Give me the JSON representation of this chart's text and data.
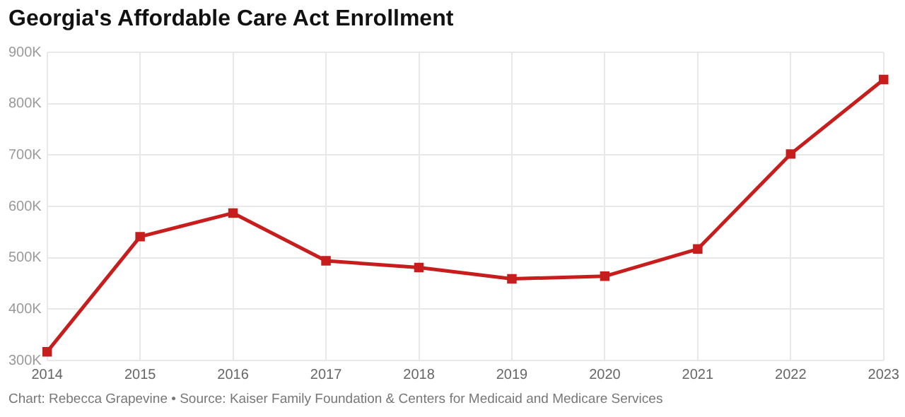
{
  "chart_data": {
    "type": "line",
    "title": "Georgia's Affordable Care Act Enrollment",
    "categories": [
      "2014",
      "2015",
      "2016",
      "2017",
      "2018",
      "2019",
      "2020",
      "2021",
      "2022",
      "2023"
    ],
    "series": [
      {
        "color": "#c71e1d",
        "values": [
          317000,
          541000,
          587000,
          494000,
          481000,
          459000,
          464000,
          517000,
          702000,
          847000
        ]
      }
    ],
    "ylim": [
      300000,
      900000
    ],
    "yticks": [
      {
        "value": 300000,
        "label": "300K"
      },
      {
        "value": 400000,
        "label": "400K"
      },
      {
        "value": 500000,
        "label": "500K"
      },
      {
        "value": 600000,
        "label": "600K"
      },
      {
        "value": 700000,
        "label": "700K"
      },
      {
        "value": 800000,
        "label": "800K"
      },
      {
        "value": 900000,
        "label": "900K"
      }
    ],
    "grid": true,
    "legend": false,
    "marker": "square",
    "line_style": "solid",
    "annotations": [
      "Chart: Rebecca Grapevine • Source: Kaiser Family Foundation & Centers for Medicaid and Medicare Services"
    ]
  }
}
